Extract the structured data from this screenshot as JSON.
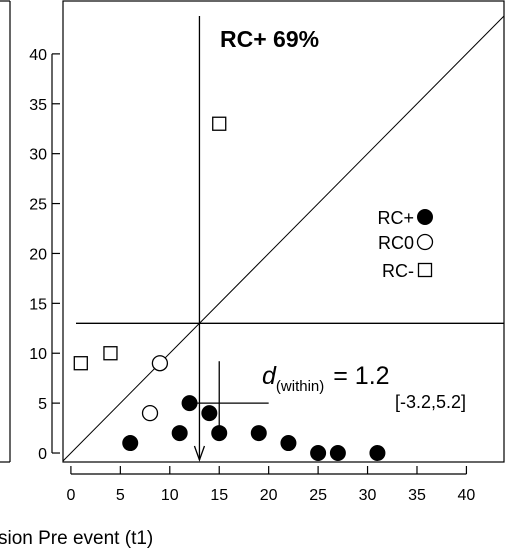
{
  "chart_data": {
    "type": "scatter",
    "title": "RC+ 69%",
    "xlabel": "sion Pre event (t1)",
    "ylabel": "",
    "xlim": [
      -0.8,
      43.8
    ],
    "ylim": [
      -0.9,
      45.3
    ],
    "x_ticks": [
      0,
      5,
      10,
      15,
      20,
      25,
      30,
      35,
      40
    ],
    "y_ticks": [
      0,
      5,
      10,
      15,
      20,
      25,
      30,
      35,
      40
    ],
    "x_tick_labels": [
      "0",
      "5",
      "10",
      "15",
      "20",
      "25",
      "30",
      "35",
      "40"
    ],
    "y_tick_labels": [
      "0",
      "5",
      "10",
      "15",
      "20",
      "25",
      "30",
      "35",
      "40"
    ],
    "grid": false,
    "legend_position": "right",
    "legend": [
      {
        "label": "RC+",
        "marker": "filled-circle"
      },
      {
        "label": "RC0",
        "marker": "open-circle"
      },
      {
        "label": "RC-",
        "marker": "open-square"
      }
    ],
    "series": [
      {
        "name": "RC+",
        "marker": "filled-circle",
        "points": [
          [
            6,
            1
          ],
          [
            11,
            2
          ],
          [
            12,
            5
          ],
          [
            14,
            4
          ],
          [
            15,
            2
          ],
          [
            19,
            2
          ],
          [
            22,
            1
          ],
          [
            25,
            0
          ],
          [
            27,
            0
          ],
          [
            31,
            0
          ]
        ]
      },
      {
        "name": "RC0",
        "marker": "open-circle",
        "points": [
          [
            8,
            4
          ],
          [
            9,
            9
          ]
        ]
      },
      {
        "name": "RC-",
        "marker": "open-square",
        "points": [
          [
            1,
            9
          ],
          [
            4,
            10
          ],
          [
            15,
            33
          ]
        ]
      }
    ],
    "reference_lines": {
      "diagonal": true,
      "vertical_x": 13,
      "horizontal_y": 13
    },
    "mean_marker": {
      "x": 15,
      "y": 5,
      "x_err": [
        12,
        20
      ],
      "y_err": [
        2,
        9.2
      ]
    },
    "arrow": {
      "x": 13,
      "from_y": 13,
      "to_y": -0.9
    },
    "effect_size": {
      "d_symbol": "d",
      "subscript": "(within)",
      "equals": "= 1.2",
      "ci": "[-3.2,5.2]"
    }
  }
}
